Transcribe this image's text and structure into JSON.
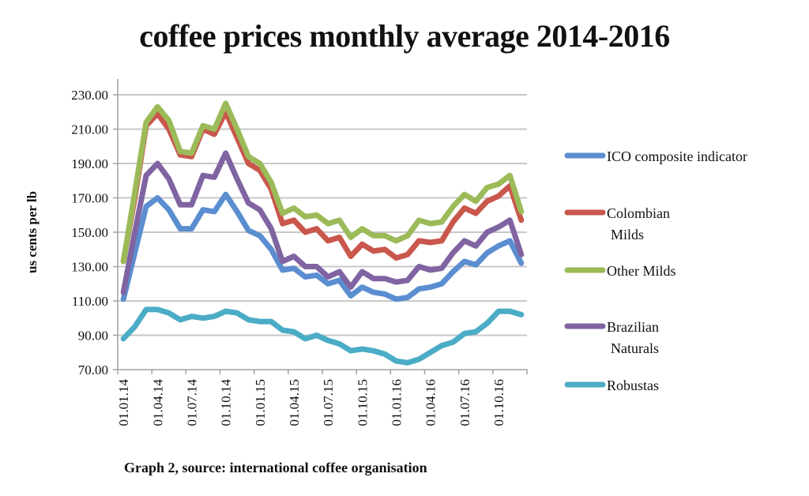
{
  "chart_data": {
    "type": "line",
    "title": "coffee prices monthly average 2014-2016",
    "xlabel": "",
    "ylabel": "us cents per lb",
    "caption": "Graph 2, source: international coffee organisation",
    "ylim": [
      70,
      230
    ],
    "yticks": [
      "70.00",
      "90.00",
      "110.00",
      "130.00",
      "150.00",
      "170.00",
      "190.00",
      "210.00",
      "230.00"
    ],
    "ytick_values": [
      70,
      90,
      110,
      130,
      150,
      170,
      190,
      210,
      230
    ],
    "xtick_labels": [
      "01.01.14",
      "01.04.14",
      "01.07.14",
      "01.10.14",
      "01.01.15",
      "01.04.15",
      "01.07.15",
      "01.10.15",
      "01.01.16",
      "01.04.16",
      "01.07.16",
      "01.10.16"
    ],
    "n_points": 36,
    "grid": true,
    "legend_position": "right",
    "series": [
      {
        "name": "ICO composite indicator",
        "legend_lines": [
          "ICO composite indicator"
        ],
        "color": "#5b8ed0",
        "values": [
          111,
          138,
          165,
          170,
          163,
          152,
          152,
          163,
          162,
          172,
          162,
          151,
          148,
          140,
          128,
          129,
          124,
          125,
          120,
          122,
          113,
          118,
          115,
          114,
          111,
          112,
          117,
          118,
          120,
          127,
          133,
          131,
          138,
          142,
          145,
          132
        ]
      },
      {
        "name": "Colombian Milds",
        "legend_lines": [
          "Colombian",
          "Milds"
        ],
        "color": "#c9574c",
        "values": [
          133,
          170,
          212,
          219,
          210,
          195,
          194,
          210,
          207,
          220,
          205,
          190,
          186,
          175,
          155,
          157,
          150,
          152,
          145,
          147,
          136,
          143,
          139,
          140,
          135,
          137,
          145,
          144,
          145,
          156,
          164,
          161,
          168,
          171,
          177,
          157
        ]
      },
      {
        "name": "Other Milds",
        "legend_lines": [
          "Other Milds"
        ],
        "color": "#9bbb59",
        "values": [
          133,
          173,
          214,
          223,
          215,
          197,
          196,
          212,
          210,
          225,
          210,
          194,
          190,
          179,
          161,
          164,
          159,
          160,
          155,
          157,
          147,
          152,
          148,
          148,
          145,
          148,
          157,
          155,
          156,
          165,
          172,
          168,
          176,
          178,
          183,
          162
        ]
      },
      {
        "name": "Brazilian Naturals",
        "legend_lines": [
          "Brazilian",
          "Naturals"
        ],
        "color": "#8064a2",
        "values": [
          115,
          150,
          183,
          190,
          181,
          166,
          166,
          183,
          182,
          196,
          181,
          167,
          163,
          152,
          133,
          136,
          130,
          130,
          124,
          127,
          118,
          127,
          123,
          123,
          121,
          122,
          130,
          128,
          129,
          138,
          145,
          142,
          150,
          153,
          157,
          137
        ]
      },
      {
        "name": "Robustas",
        "legend_lines": [
          "Robustas"
        ],
        "color": "#4bacc6",
        "values": [
          88,
          95,
          105,
          105,
          103,
          99,
          101,
          100,
          101,
          104,
          103,
          99,
          98,
          98,
          93,
          92,
          88,
          90,
          87,
          85,
          81,
          82,
          81,
          79,
          75,
          74,
          76,
          80,
          84,
          86,
          91,
          92,
          97,
          104,
          104,
          102
        ]
      }
    ]
  }
}
